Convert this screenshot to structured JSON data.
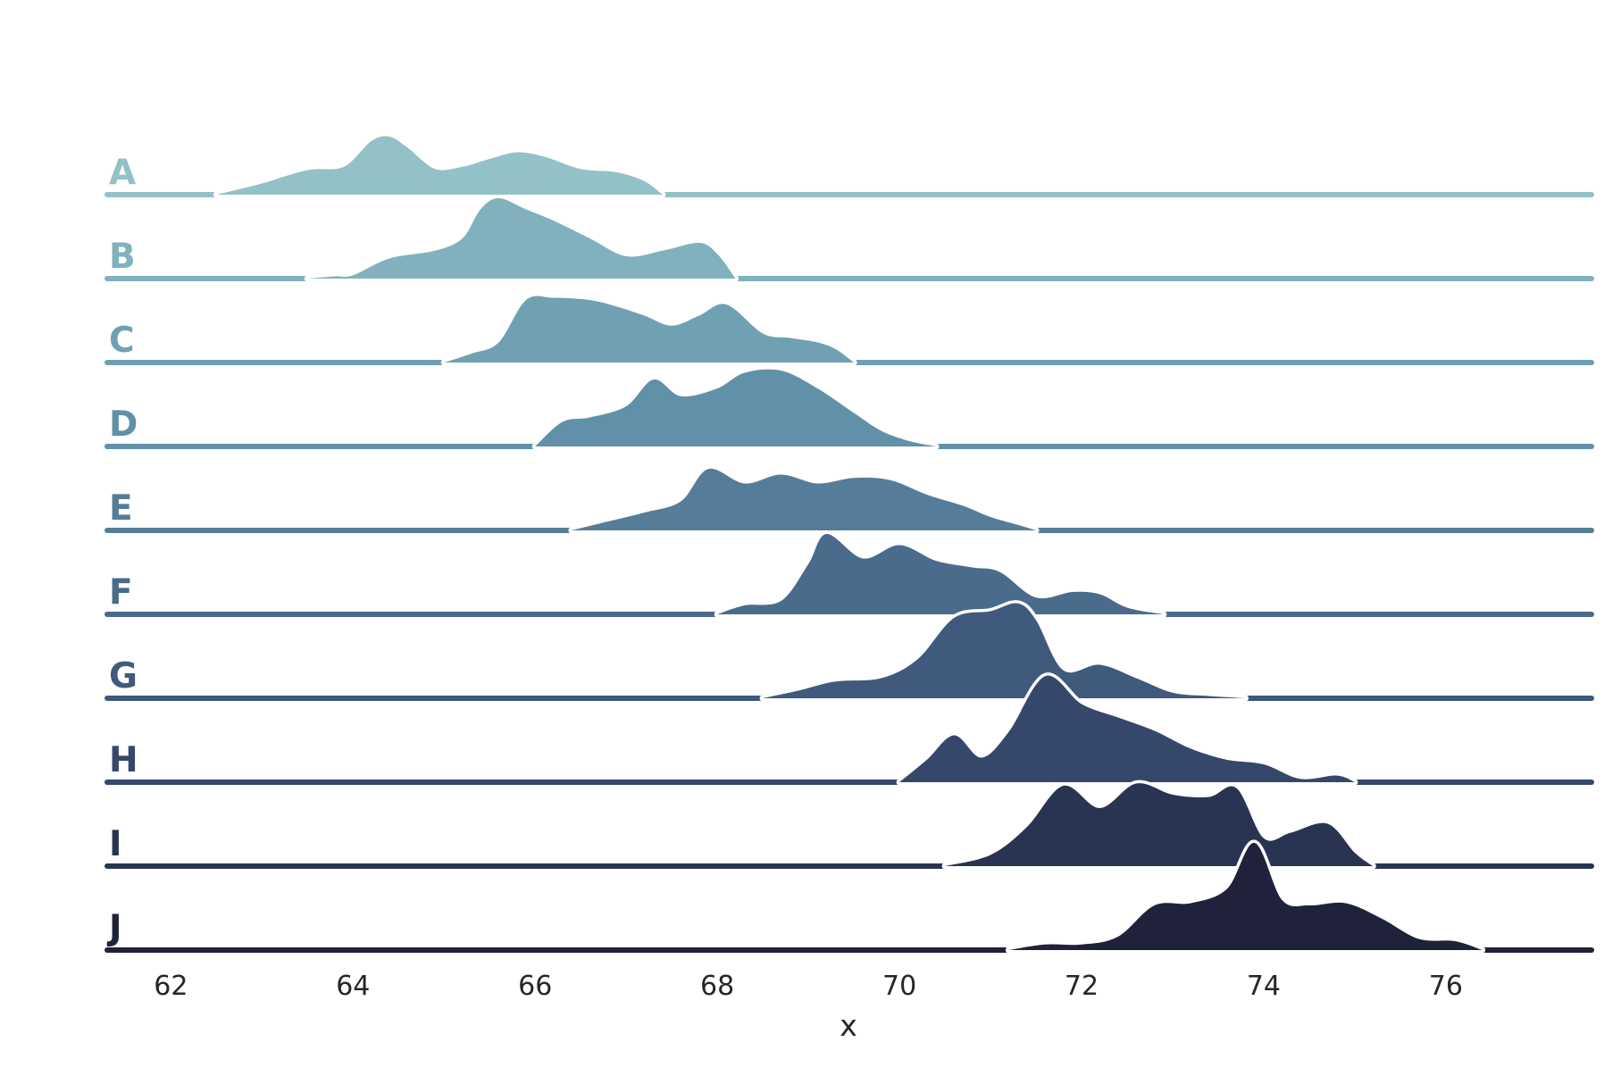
{
  "chart_data": {
    "type": "ridgeline",
    "xlabel": "x",
    "ylabel": "",
    "title": "",
    "xlim": [
      61.3,
      77.6
    ],
    "x_ticks": [
      62,
      64,
      66,
      68,
      70,
      72,
      74,
      76
    ],
    "x_tick_labels": [
      "62",
      "64",
      "66",
      "68",
      "70",
      "72",
      "74",
      "76"
    ],
    "grid": false,
    "legend": "none",
    "series": [
      {
        "name": "A",
        "color": "#93c1c8",
        "support": [
          62.5,
          67.4
        ],
        "points": [
          [
            62.5,
            0
          ],
          [
            63.0,
            0.1
          ],
          [
            63.5,
            0.22
          ],
          [
            63.9,
            0.25
          ],
          [
            64.2,
            0.48
          ],
          [
            64.4,
            0.52
          ],
          [
            64.6,
            0.42
          ],
          [
            64.9,
            0.23
          ],
          [
            65.2,
            0.25
          ],
          [
            65.5,
            0.32
          ],
          [
            65.8,
            0.38
          ],
          [
            66.1,
            0.34
          ],
          [
            66.5,
            0.23
          ],
          [
            66.9,
            0.2
          ],
          [
            67.2,
            0.12
          ],
          [
            67.4,
            0
          ]
        ]
      },
      {
        "name": "B",
        "color": "#80b1bd",
        "support": [
          63.5,
          68.2
        ],
        "points": [
          [
            63.5,
            0
          ],
          [
            63.8,
            0.02
          ],
          [
            64.0,
            0.03
          ],
          [
            64.4,
            0.18
          ],
          [
            64.9,
            0.25
          ],
          [
            65.2,
            0.36
          ],
          [
            65.4,
            0.62
          ],
          [
            65.6,
            0.72
          ],
          [
            65.9,
            0.62
          ],
          [
            66.2,
            0.52
          ],
          [
            66.6,
            0.36
          ],
          [
            67.0,
            0.2
          ],
          [
            67.4,
            0.25
          ],
          [
            67.8,
            0.32
          ],
          [
            68.0,
            0.22
          ],
          [
            68.2,
            0
          ]
        ]
      },
      {
        "name": "C",
        "color": "#6fa1b3",
        "support": [
          65.0,
          69.5
        ],
        "points": [
          [
            65.0,
            0
          ],
          [
            65.3,
            0.08
          ],
          [
            65.6,
            0.18
          ],
          [
            65.9,
            0.56
          ],
          [
            66.2,
            0.58
          ],
          [
            66.6,
            0.56
          ],
          [
            66.9,
            0.5
          ],
          [
            67.2,
            0.42
          ],
          [
            67.5,
            0.33
          ],
          [
            67.8,
            0.42
          ],
          [
            68.1,
            0.52
          ],
          [
            68.5,
            0.26
          ],
          [
            68.8,
            0.22
          ],
          [
            69.1,
            0.18
          ],
          [
            69.3,
            0.12
          ],
          [
            69.5,
            0
          ]
        ]
      },
      {
        "name": "D",
        "color": "#6191a8",
        "support": [
          66.0,
          70.4
        ],
        "points": [
          [
            66.0,
            0
          ],
          [
            66.3,
            0.22
          ],
          [
            66.6,
            0.26
          ],
          [
            67.0,
            0.36
          ],
          [
            67.3,
            0.6
          ],
          [
            67.6,
            0.45
          ],
          [
            68.0,
            0.52
          ],
          [
            68.3,
            0.66
          ],
          [
            68.7,
            0.68
          ],
          [
            69.1,
            0.52
          ],
          [
            69.5,
            0.3
          ],
          [
            69.8,
            0.14
          ],
          [
            70.1,
            0.05
          ],
          [
            70.4,
            0
          ]
        ]
      },
      {
        "name": "E",
        "color": "#557d99",
        "support": [
          66.4,
          71.5
        ],
        "points": [
          [
            66.4,
            0
          ],
          [
            66.8,
            0.08
          ],
          [
            67.2,
            0.16
          ],
          [
            67.6,
            0.26
          ],
          [
            67.9,
            0.55
          ],
          [
            68.3,
            0.42
          ],
          [
            68.7,
            0.5
          ],
          [
            69.1,
            0.42
          ],
          [
            69.5,
            0.47
          ],
          [
            69.9,
            0.45
          ],
          [
            70.3,
            0.32
          ],
          [
            70.7,
            0.22
          ],
          [
            71.0,
            0.12
          ],
          [
            71.3,
            0.05
          ],
          [
            71.5,
            0
          ]
        ]
      },
      {
        "name": "F",
        "color": "#4a6b8c",
        "support": [
          68.0,
          72.9
        ],
        "points": [
          [
            68.0,
            0
          ],
          [
            68.3,
            0.08
          ],
          [
            68.7,
            0.12
          ],
          [
            69.0,
            0.45
          ],
          [
            69.2,
            0.72
          ],
          [
            69.6,
            0.5
          ],
          [
            70.0,
            0.62
          ],
          [
            70.4,
            0.48
          ],
          [
            70.8,
            0.42
          ],
          [
            71.1,
            0.38
          ],
          [
            71.5,
            0.15
          ],
          [
            71.9,
            0.2
          ],
          [
            72.2,
            0.18
          ],
          [
            72.5,
            0.06
          ],
          [
            72.9,
            0
          ]
        ]
      },
      {
        "name": "G",
        "color": "#3f5a7c",
        "support": [
          68.5,
          73.8
        ],
        "points": [
          [
            68.5,
            0
          ],
          [
            68.9,
            0.07
          ],
          [
            69.3,
            0.15
          ],
          [
            69.8,
            0.18
          ],
          [
            70.2,
            0.35
          ],
          [
            70.6,
            0.72
          ],
          [
            71.0,
            0.78
          ],
          [
            71.3,
            0.85
          ],
          [
            71.5,
            0.7
          ],
          [
            71.8,
            0.25
          ],
          [
            72.2,
            0.3
          ],
          [
            72.6,
            0.18
          ],
          [
            73.0,
            0.05
          ],
          [
            73.4,
            0.02
          ],
          [
            73.8,
            0
          ]
        ]
      },
      {
        "name": "H",
        "color": "#35476a",
        "support": [
          70.0,
          75.0
        ],
        "points": [
          [
            70.0,
            0
          ],
          [
            70.3,
            0.2
          ],
          [
            70.6,
            0.42
          ],
          [
            70.9,
            0.22
          ],
          [
            71.2,
            0.45
          ],
          [
            71.6,
            0.95
          ],
          [
            72.0,
            0.7
          ],
          [
            72.4,
            0.58
          ],
          [
            72.8,
            0.46
          ],
          [
            73.2,
            0.3
          ],
          [
            73.6,
            0.2
          ],
          [
            74.0,
            0.16
          ],
          [
            74.4,
            0.03
          ],
          [
            74.8,
            0.06
          ],
          [
            75.0,
            0
          ]
        ]
      },
      {
        "name": "I",
        "color": "#293452",
        "support": [
          70.5,
          75.2
        ],
        "points": [
          [
            70.5,
            0
          ],
          [
            71.0,
            0.1
          ],
          [
            71.4,
            0.35
          ],
          [
            71.8,
            0.72
          ],
          [
            72.2,
            0.52
          ],
          [
            72.6,
            0.74
          ],
          [
            73.0,
            0.64
          ],
          [
            73.4,
            0.62
          ],
          [
            73.7,
            0.7
          ],
          [
            74.0,
            0.25
          ],
          [
            74.3,
            0.3
          ],
          [
            74.7,
            0.38
          ],
          [
            75.0,
            0.12
          ],
          [
            75.2,
            0
          ]
        ]
      },
      {
        "name": "J",
        "color": "#20223b",
        "support": [
          71.2,
          76.4
        ],
        "points": [
          [
            71.2,
            0
          ],
          [
            71.6,
            0.05
          ],
          [
            72.0,
            0.05
          ],
          [
            72.4,
            0.12
          ],
          [
            72.8,
            0.4
          ],
          [
            73.2,
            0.42
          ],
          [
            73.6,
            0.55
          ],
          [
            73.9,
            0.96
          ],
          [
            74.2,
            0.45
          ],
          [
            74.5,
            0.4
          ],
          [
            74.9,
            0.42
          ],
          [
            75.3,
            0.28
          ],
          [
            75.7,
            0.1
          ],
          [
            76.1,
            0.08
          ],
          [
            76.4,
            0
          ]
        ]
      }
    ]
  }
}
